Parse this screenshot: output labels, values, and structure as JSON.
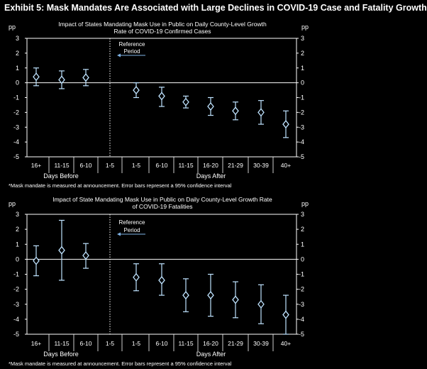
{
  "exhibit_title": "Exhibit 5: Mask Mandates Are Associated with Large Declines in COVID-19 Case and Fatality Growth",
  "colors": {
    "background": "#000000",
    "foreground": "#ffffff",
    "series": "#bfe3ff"
  },
  "chart_data": [
    {
      "type": "scatter",
      "title": "Impact of States Mandating Mask Use in Public on Daily County-Level Growth Rate of COVID-19 Confirmed Cases",
      "title_lines": [
        "Impact of States Mandating Mask Use in Public on Daily County-Level Growth",
        "Rate of COVID-19 Confirmed Cases"
      ],
      "unit_left": "pp",
      "unit_right": "pp",
      "ylim": [
        -5,
        3
      ],
      "yticks": [
        3,
        2,
        1,
        0,
        -1,
        -2,
        -3,
        -4,
        -5
      ],
      "categories": [
        "16+",
        "11-15",
        "6-10",
        "1-5",
        "1-5",
        "6-10",
        "11-15",
        "16-20",
        "21-29",
        "30-39",
        "40+"
      ],
      "group_labels": {
        "before": "Days Before",
        "after": "Days After"
      },
      "reference_label": [
        "Reference",
        "Period"
      ],
      "series": [
        {
          "points": [
            {
              "x": "16+ (before)",
              "y": 0.4,
              "low": -0.2,
              "high": 1.0
            },
            {
              "x": "11-15 (before)",
              "y": 0.2,
              "low": -0.4,
              "high": 0.8
            },
            {
              "x": "6-10 (before)",
              "y": 0.35,
              "low": -0.2,
              "high": 0.9
            },
            {
              "x": "1-5 (after)",
              "y": -0.5,
              "low": -1.0,
              "high": 0.0
            },
            {
              "x": "6-10 (after)",
              "y": -0.9,
              "low": -1.6,
              "high": -0.3
            },
            {
              "x": "11-15 (after)",
              "y": -1.3,
              "low": -1.7,
              "high": -0.9
            },
            {
              "x": "16-20 (after)",
              "y": -1.6,
              "low": -2.2,
              "high": -1.0
            },
            {
              "x": "21-29 (after)",
              "y": -1.9,
              "low": -2.5,
              "high": -1.3
            },
            {
              "x": "30-39 (after)",
              "y": -2.0,
              "low": -2.8,
              "high": -1.2
            },
            {
              "x": "40+ (after)",
              "y": -2.8,
              "low": -3.7,
              "high": -1.9
            }
          ]
        }
      ],
      "footnote": "*Mask mandate is measured at announcement. Error bars represent a 95% confidence interval"
    },
    {
      "type": "scatter",
      "title": "Impact of State Mandating Mask Use in Public on Daily County-Level Growth Rate of COVID-19 Fatalities",
      "title_lines": [
        "Impact of State Mandating Mask Use in Public on Daily County-Level Growth Rate",
        "of COVID-19 Fatalities"
      ],
      "unit_left": "pp",
      "unit_right": "pp",
      "ylim": [
        -5,
        3
      ],
      "yticks": [
        3,
        2,
        1,
        0,
        -1,
        -2,
        -3,
        -4,
        -5
      ],
      "categories": [
        "16+",
        "11-15",
        "6-10",
        "1-5",
        "1-5",
        "6-10",
        "11-15",
        "16-20",
        "21-29",
        "30-39",
        "40+"
      ],
      "group_labels": {
        "before": "Days Before",
        "after": "Days After"
      },
      "reference_label": [
        "Reference",
        "Period"
      ],
      "series": [
        {
          "points": [
            {
              "x": "16+ (before)",
              "y": -0.1,
              "low": -1.1,
              "high": 0.9
            },
            {
              "x": "11-15 (before)",
              "y": 0.6,
              "low": -1.4,
              "high": 2.6
            },
            {
              "x": "6-10 (before)",
              "y": 0.25,
              "low": -0.6,
              "high": 1.05
            },
            {
              "x": "1-5 (after)",
              "y": -1.2,
              "low": -2.1,
              "high": -0.3
            },
            {
              "x": "6-10 (after)",
              "y": -1.4,
              "low": -2.4,
              "high": -0.3
            },
            {
              "x": "11-15 (after)",
              "y": -2.4,
              "low": -3.5,
              "high": -1.3
            },
            {
              "x": "16-20 (after)",
              "y": -2.4,
              "low": -3.8,
              "high": -1.0
            },
            {
              "x": "21-29 (after)",
              "y": -2.7,
              "low": -3.9,
              "high": -1.5
            },
            {
              "x": "30-39 (after)",
              "y": -3.0,
              "low": -4.3,
              "high": -1.7
            },
            {
              "x": "40+ (after)",
              "y": -3.7,
              "low": -5.0,
              "high": -2.4
            }
          ]
        }
      ],
      "footnote": "*Mask mandate is measured at announcement. Error bars represent a 95% confidence interval"
    }
  ]
}
